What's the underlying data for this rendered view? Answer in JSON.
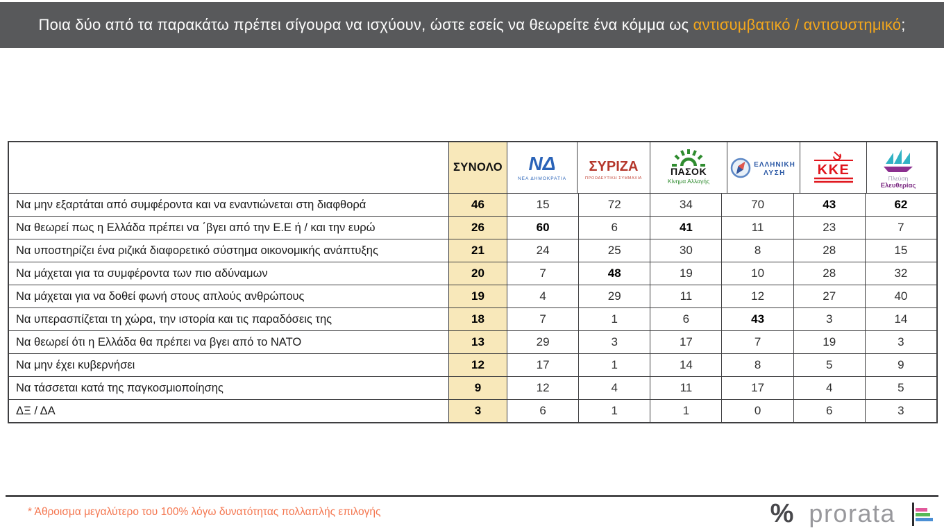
{
  "question": {
    "text": "Ποια δύο από τα παρακάτω πρέπει σίγουρα να ισχύουν, ώστε εσείς να θεωρείτε ένα κόμμα ως ",
    "highlight": "αντισυμβατικό / αντισυστημικό",
    "suffix": ";"
  },
  "table": {
    "total_header": "ΣΥΝΟΛΟ",
    "parties": [
      {
        "id": "nd",
        "name": "Νέα Δημοκρατία",
        "logo_main": "ΝΔ",
        "logo_caption": "ΝΕΑ ΔΗΜΟΚΡΑΤΙΑ"
      },
      {
        "id": "syriza",
        "name": "ΣΥΡΙΖΑ Προοδευτική Συμμαχία",
        "logo_main": "ΣΥΡΙΖΑ",
        "logo_caption": "ΠΡΟΟΔΕΥΤΙΚΗ ΣΥΜΜΑΧΙΑ"
      },
      {
        "id": "pasok",
        "name": "ΠΑΣΟΚ Κίνημα Αλλαγής",
        "logo_main": "ΠΑΣΟΚ",
        "logo_caption": "Κίνημα Αλλαγής"
      },
      {
        "id": "elliniki-lysi",
        "name": "Ελληνική Λύση",
        "logo_line1": "ΕΛΛΗΝΙΚΗ",
        "logo_line2": "ΛΥΣΗ"
      },
      {
        "id": "kke",
        "name": "ΚΚΕ",
        "logo_main": "ΚΚΕ"
      },
      {
        "id": "pleusi-eleftherias",
        "name": "Πλεύση Ελευθερίας",
        "logo_line1": "Πλεύση",
        "logo_line2": "Ελευθερίας"
      }
    ],
    "rows": [
      {
        "label": "Να μην εξαρτάται από συμφέροντα και να εναντιώνεται στη διαφθορά",
        "values": [
          46,
          15,
          72,
          34,
          70,
          43,
          62
        ],
        "bold": [
          0,
          5,
          6
        ]
      },
      {
        "label": "Να θεωρεί πως η Ελλάδα πρέπει να ΄βγει από την Ε.Ε ή / και την ευρώ",
        "values": [
          26,
          60,
          6,
          41,
          11,
          23,
          7
        ],
        "bold": [
          0,
          1,
          3
        ]
      },
      {
        "label": "Να υποστηρίζει ένα ριζικά διαφορετικό σύστημα οικονομικής ανάπτυξης",
        "values": [
          21,
          24,
          25,
          30,
          8,
          28,
          15
        ],
        "bold": [
          0
        ]
      },
      {
        "label": "Να μάχεται για τα συμφέροντα των πιο αδύναμων",
        "values": [
          20,
          7,
          48,
          19,
          10,
          28,
          32
        ],
        "bold": [
          0,
          2
        ]
      },
      {
        "label": "Να μάχεται για να δοθεί φωνή στους απλούς ανθρώπους",
        "values": [
          19,
          4,
          29,
          11,
          12,
          27,
          40
        ],
        "bold": [
          0
        ]
      },
      {
        "label": "Να υπερασπίζεται τη χώρα, την ιστορία και τις παραδόσεις της",
        "values": [
          18,
          7,
          1,
          6,
          43,
          3,
          14
        ],
        "bold": [
          0,
          4
        ]
      },
      {
        "label": "Να θεωρεί ότι η Ελλάδα θα πρέπει να βγει από το ΝΑΤΟ",
        "values": [
          13,
          29,
          3,
          17,
          7,
          19,
          3
        ],
        "bold": [
          0
        ]
      },
      {
        "label": "Να μην έχει κυβερνήσει",
        "values": [
          12,
          17,
          1,
          14,
          8,
          5,
          9
        ],
        "bold": [
          0
        ]
      },
      {
        "label": "Να τάσσεται κατά της παγκοσμιοποίησης",
        "values": [
          9,
          12,
          4,
          11,
          17,
          4,
          5
        ],
        "bold": [
          0
        ]
      },
      {
        "label": "ΔΞ / ΔΑ",
        "values": [
          3,
          6,
          1,
          1,
          0,
          6,
          3
        ],
        "bold": [
          0
        ]
      }
    ]
  },
  "chart_data": {
    "type": "table",
    "title": "Ποια δύο από τα παρακάτω πρέπει σίγουρα να ισχύουν, ώστε εσείς να θεωρείτε ένα κόμμα ως αντισυμβατικό / αντισυστημικό;",
    "categories": [
      "Να μην εξαρτάται από συμφέροντα και να εναντιώνεται στη διαφθορά",
      "Να θεωρεί πως η Ελλάδα πρέπει να ΄βγει από την Ε.Ε ή / και την ευρώ",
      "Να υποστηρίζει ένα ριζικά διαφορετικό σύστημα οικονομικής ανάπτυξης",
      "Να μάχεται για τα συμφέροντα των πιο αδύναμων",
      "Να μάχεται για να δοθεί φωνή στους απλούς ανθρώπους",
      "Να υπερασπίζεται τη χώρα, την ιστορία και τις παραδόσεις της",
      "Να θεωρεί ότι η Ελλάδα θα πρέπει να βγει από το ΝΑΤΟ",
      "Να μην έχει κυβερνήσει",
      "Να τάσσεται κατά της παγκοσμιοποίησης",
      "ΔΞ / ΔΑ"
    ],
    "series": [
      {
        "name": "ΣΥΝΟΛΟ",
        "values": [
          46,
          26,
          21,
          20,
          19,
          18,
          13,
          12,
          9,
          3
        ]
      },
      {
        "name": "ΝΕΑ ΔΗΜΟΚΡΑΤΙΑ",
        "values": [
          15,
          60,
          24,
          7,
          4,
          7,
          29,
          17,
          12,
          6
        ]
      },
      {
        "name": "ΣΥΡΙΖΑ",
        "values": [
          72,
          6,
          25,
          48,
          29,
          1,
          3,
          1,
          4,
          1
        ]
      },
      {
        "name": "ΠΑΣΟΚ",
        "values": [
          34,
          41,
          30,
          19,
          11,
          6,
          17,
          14,
          11,
          1
        ]
      },
      {
        "name": "ΕΛΛΗΝΙΚΗ ΛΥΣΗ",
        "values": [
          70,
          11,
          8,
          10,
          12,
          43,
          7,
          8,
          17,
          0
        ]
      },
      {
        "name": "ΚΚΕ",
        "values": [
          43,
          23,
          28,
          28,
          27,
          3,
          19,
          5,
          4,
          6
        ]
      },
      {
        "name": "ΠΛΕΥΣΗ ΕΛΕΥΘΕΡΙΑΣ",
        "values": [
          62,
          7,
          15,
          32,
          40,
          14,
          3,
          9,
          5,
          3
        ]
      }
    ],
    "note": "* Άθροισμα μεγαλύτερο του 100% λόγω δυνατότητας πολλαπλής επιλογής",
    "units": "%"
  },
  "footer": {
    "note": "* Άθροισμα μεγαλύτερο του 100% λόγω δυνατότητας πολλαπλής επιλογής",
    "brand_symbol": "%",
    "brand": "prorata"
  },
  "colors": {
    "header_bg": "#58595b",
    "header_highlight": "#f3a71c",
    "total_column_bg": "#f8e8ba",
    "table_border": "#3e3e40",
    "note_text": "#f4764f",
    "nd_blue": "#2a63b8",
    "syriza_red": "#b5372b",
    "pasok_green": "#2f8c2f",
    "elliniki_lysi_blue": "#2d5aa6",
    "kke_red": "#e0161d",
    "pleusi_teal": "#31b2c4",
    "pleusi_purple": "#7b2982",
    "brand_gray": "#98989c",
    "brand_bar_pink": "#e1599b",
    "brand_bar_green": "#57b957",
    "brand_bar_blue": "#4b8fd4"
  }
}
